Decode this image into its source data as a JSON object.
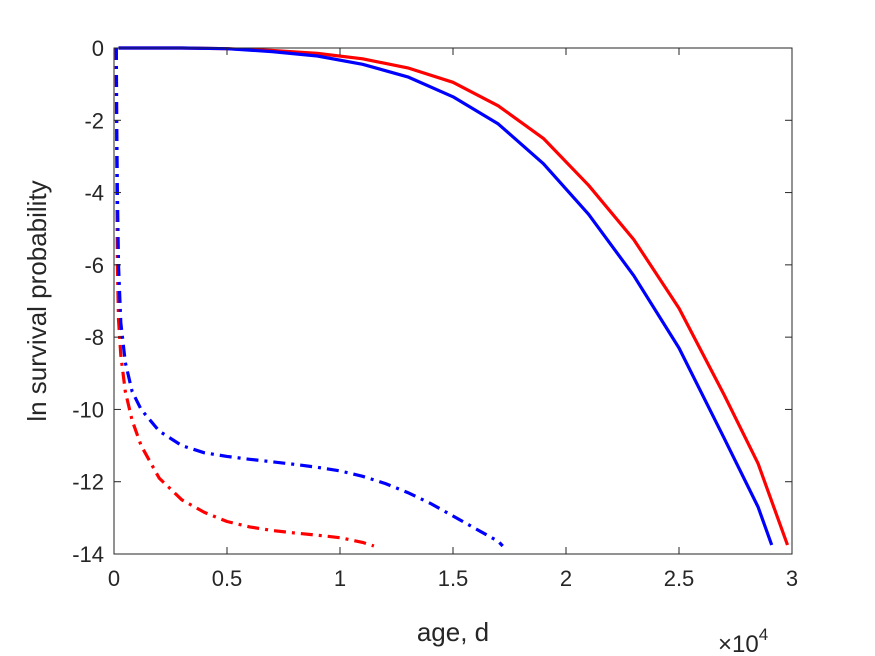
{
  "chart_data": {
    "type": "line",
    "title": "",
    "xlabel": "age, d",
    "ylabel": "ln survival probability",
    "x_exponent_label": "×10",
    "x_exponent_power": "4",
    "xlim": [
      0,
      3
    ],
    "ylim": [
      -14,
      0
    ],
    "x_ticks": [
      0,
      0.5,
      1,
      1.5,
      2,
      2.5,
      3
    ],
    "x_tick_labels": [
      "0",
      "0.5",
      "1",
      "1.5",
      "2",
      "2.5",
      "3"
    ],
    "y_ticks": [
      0,
      -2,
      -4,
      -6,
      -8,
      -10,
      -12,
      -14
    ],
    "y_tick_labels": [
      "0",
      "-2",
      "-4",
      "-6",
      "-8",
      "-10",
      "-12",
      "-14"
    ],
    "grid": false,
    "legend": "none",
    "series": [
      {
        "color": "#ff0000",
        "style": "solid",
        "x": [
          0.02,
          0.3,
          0.5,
          0.7,
          0.9,
          1.1,
          1.3,
          1.5,
          1.7,
          1.9,
          2.1,
          2.3,
          2.5,
          2.7,
          2.85,
          2.98
        ],
        "y": [
          0,
          0,
          -0.02,
          -0.07,
          -0.15,
          -0.3,
          -0.55,
          -0.95,
          -1.6,
          -2.5,
          -3.8,
          -5.3,
          -7.2,
          -9.6,
          -11.5,
          -13.75
        ]
      },
      {
        "color": "#0000ff",
        "style": "solid",
        "x": [
          0.02,
          0.3,
          0.5,
          0.7,
          0.9,
          1.1,
          1.3,
          1.5,
          1.7,
          1.9,
          2.1,
          2.3,
          2.5,
          2.7,
          2.85,
          2.91
        ],
        "y": [
          0,
          0,
          -0.02,
          -0.1,
          -0.22,
          -0.45,
          -0.8,
          -1.35,
          -2.1,
          -3.2,
          -4.6,
          -6.3,
          -8.3,
          -10.8,
          -12.7,
          -13.75
        ]
      },
      {
        "color": "#ff0000",
        "style": "dashdot",
        "x": [
          0.01,
          0.012,
          0.015,
          0.02,
          0.03,
          0.05,
          0.08,
          0.12,
          0.2,
          0.3,
          0.4,
          0.5,
          0.6,
          0.7,
          0.8,
          0.9,
          1.0,
          1.1,
          1.15
        ],
        "y": [
          0,
          -3,
          -6,
          -7.5,
          -8.5,
          -9.5,
          -10.3,
          -11,
          -11.9,
          -12.5,
          -12.85,
          -13.1,
          -13.25,
          -13.35,
          -13.42,
          -13.48,
          -13.55,
          -13.68,
          -13.78
        ]
      },
      {
        "color": "#0000ff",
        "style": "dashdot",
        "x": [
          0.01,
          0.012,
          0.015,
          0.02,
          0.03,
          0.05,
          0.08,
          0.12,
          0.2,
          0.3,
          0.4,
          0.5,
          0.6,
          0.7,
          0.8,
          0.9,
          1.0,
          1.1,
          1.2,
          1.3,
          1.4,
          1.5,
          1.6,
          1.7,
          1.72
        ],
        "y": [
          0,
          -2,
          -4,
          -6,
          -7.6,
          -8.7,
          -9.5,
          -10,
          -10.6,
          -11,
          -11.2,
          -11.3,
          -11.38,
          -11.45,
          -11.52,
          -11.6,
          -11.7,
          -11.85,
          -12.05,
          -12.3,
          -12.6,
          -12.95,
          -13.3,
          -13.65,
          -13.78
        ]
      }
    ]
  }
}
